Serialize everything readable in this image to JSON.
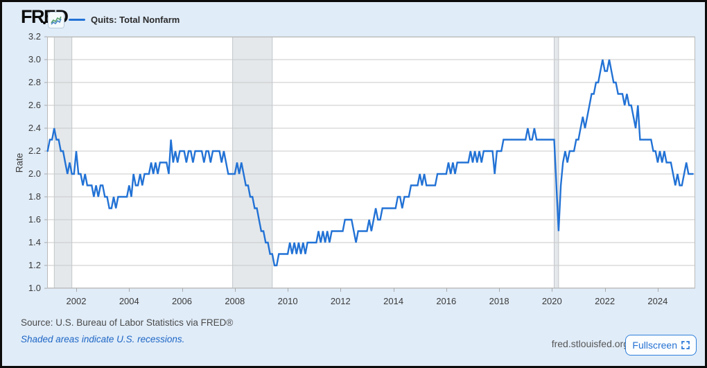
{
  "header": {
    "logo_text": "FRED",
    "legend": {
      "label": "Quits: Total Nonfarm",
      "line_color": "#2272d5"
    }
  },
  "footer": {
    "source_text": "Source: U.S. Bureau of Labor Statistics via FRED®",
    "recession_note": "Shaded areas indicate U.S. recessions.",
    "site_url": "fred.stlouisfed.org",
    "fullscreen_label": "Fullscreen"
  },
  "chart_data": {
    "type": "line",
    "title": "Quits: Total Nonfarm",
    "series_name": "Quits: Total Nonfarm",
    "ylabel": "Rate",
    "frequency": "monthly",
    "start": "2000-12",
    "end": "2025-05",
    "x_range": [
      2000.898,
      2025.42
    ],
    "y_range": [
      1.0,
      3.2
    ],
    "y_ticks": [
      1.0,
      1.2,
      1.4,
      1.6,
      1.8,
      2.0,
      2.2,
      2.4,
      2.6,
      2.8,
      3.0,
      3.2
    ],
    "x_ticks": [
      2002,
      2004,
      2006,
      2008,
      2010,
      2012,
      2014,
      2016,
      2018,
      2020,
      2022,
      2024
    ],
    "grid": true,
    "legend_position": "top-left",
    "line_color": "#2272d5",
    "plot_bg": "#ffffff",
    "grid_color": "#c9c9c9",
    "recession_band_color": "#e4e8eb",
    "recession_bands": [
      [
        2001.167,
        2001.833
      ],
      [
        2007.917,
        2009.417
      ],
      [
        2020.083,
        2020.25
      ]
    ],
    "values": [
      2.2,
      2.3,
      2.3,
      2.4,
      2.3,
      2.3,
      2.2,
      2.2,
      2.1,
      2.0,
      2.1,
      2.0,
      2.0,
      2.2,
      2.0,
      2.0,
      1.9,
      2.0,
      1.9,
      1.9,
      1.9,
      1.8,
      1.9,
      1.8,
      1.9,
      1.9,
      1.8,
      1.8,
      1.7,
      1.7,
      1.8,
      1.7,
      1.8,
      1.8,
      1.8,
      1.8,
      1.8,
      1.9,
      1.8,
      2.0,
      1.9,
      1.9,
      2.0,
      1.9,
      2.0,
      2.0,
      2.0,
      2.1,
      2.0,
      2.1,
      2.0,
      2.1,
      2.1,
      2.1,
      2.1,
      2.0,
      2.3,
      2.1,
      2.2,
      2.1,
      2.2,
      2.2,
      2.2,
      2.1,
      2.2,
      2.2,
      2.1,
      2.2,
      2.2,
      2.2,
      2.2,
      2.1,
      2.2,
      2.2,
      2.1,
      2.2,
      2.2,
      2.2,
      2.2,
      2.1,
      2.2,
      2.1,
      2.0,
      2.0,
      2.0,
      2.0,
      2.1,
      2.0,
      2.1,
      2.0,
      1.9,
      1.9,
      1.8,
      1.8,
      1.7,
      1.7,
      1.6,
      1.5,
      1.5,
      1.4,
      1.4,
      1.3,
      1.3,
      1.2,
      1.2,
      1.3,
      1.3,
      1.3,
      1.3,
      1.3,
      1.4,
      1.3,
      1.4,
      1.3,
      1.4,
      1.3,
      1.4,
      1.3,
      1.4,
      1.4,
      1.4,
      1.4,
      1.4,
      1.5,
      1.4,
      1.5,
      1.4,
      1.5,
      1.4,
      1.5,
      1.5,
      1.5,
      1.5,
      1.5,
      1.5,
      1.6,
      1.6,
      1.6,
      1.6,
      1.5,
      1.4,
      1.5,
      1.5,
      1.5,
      1.5,
      1.5,
      1.6,
      1.5,
      1.6,
      1.7,
      1.6,
      1.6,
      1.7,
      1.7,
      1.7,
      1.7,
      1.7,
      1.7,
      1.7,
      1.8,
      1.8,
      1.7,
      1.8,
      1.8,
      1.8,
      1.9,
      1.9,
      1.9,
      1.9,
      2.0,
      1.9,
      2.0,
      1.9,
      1.9,
      1.9,
      1.9,
      1.9,
      2.0,
      2.0,
      2.0,
      2.0,
      2.0,
      2.1,
      2.0,
      2.1,
      2.0,
      2.1,
      2.1,
      2.1,
      2.1,
      2.1,
      2.1,
      2.2,
      2.1,
      2.2,
      2.1,
      2.2,
      2.1,
      2.2,
      2.2,
      2.2,
      2.2,
      2.2,
      2.0,
      2.2,
      2.2,
      2.2,
      2.3,
      2.3,
      2.3,
      2.3,
      2.3,
      2.3,
      2.3,
      2.3,
      2.3,
      2.3,
      2.3,
      2.4,
      2.3,
      2.3,
      2.4,
      2.3,
      2.3,
      2.3,
      2.3,
      2.3,
      2.3,
      2.3,
      2.3,
      2.3,
      1.9,
      1.5,
      1.9,
      2.1,
      2.2,
      2.1,
      2.2,
      2.2,
      2.2,
      2.3,
      2.3,
      2.4,
      2.5,
      2.4,
      2.5,
      2.6,
      2.7,
      2.7,
      2.8,
      2.8,
      2.9,
      3.0,
      2.9,
      2.9,
      3.0,
      2.9,
      2.8,
      2.8,
      2.7,
      2.7,
      2.7,
      2.6,
      2.7,
      2.6,
      2.6,
      2.5,
      2.4,
      2.6,
      2.3,
      2.3,
      2.3,
      2.3,
      2.3,
      2.3,
      2.2,
      2.2,
      2.1,
      2.2,
      2.1,
      2.2,
      2.1,
      2.1,
      2.1,
      2.0,
      1.9,
      2.0,
      1.9,
      1.9,
      2.0,
      2.1,
      2.0,
      2.0,
      2.0
    ]
  }
}
